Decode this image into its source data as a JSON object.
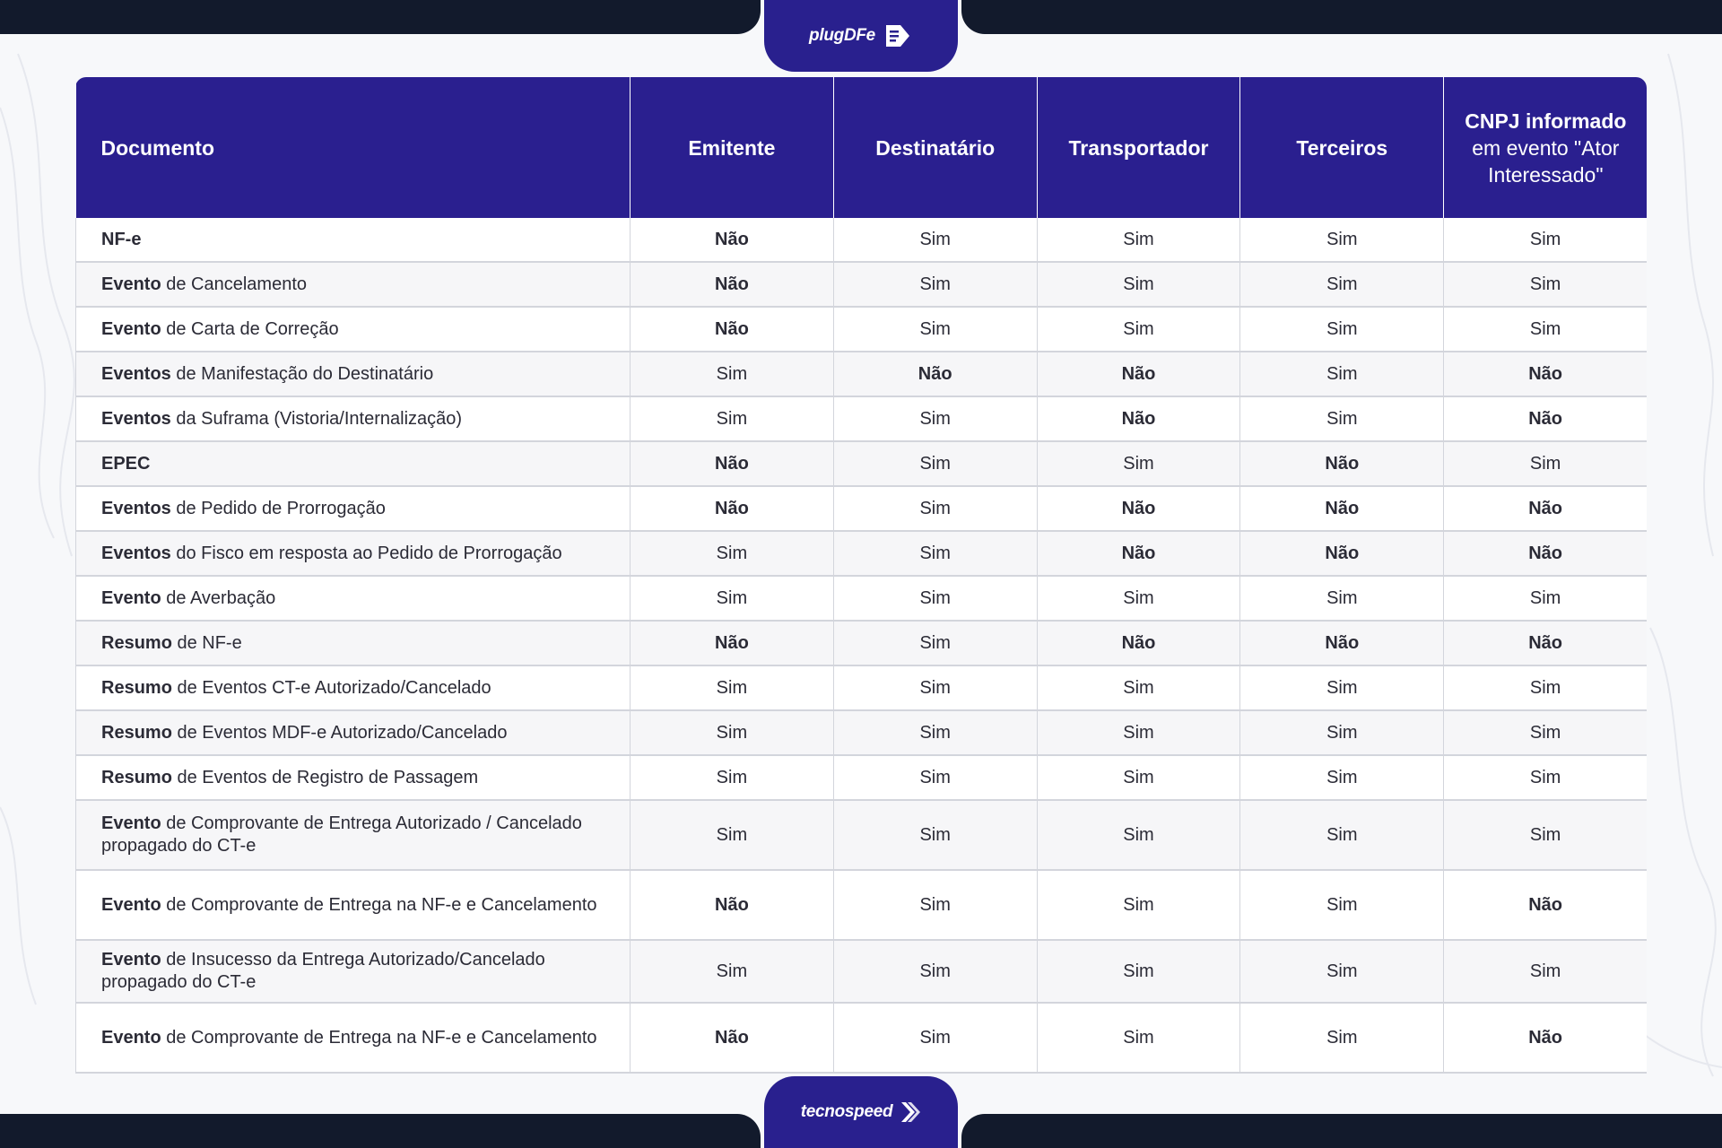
{
  "brand": {
    "top_logo": "plugDFe",
    "bottom_logo": "tecnospeed"
  },
  "table": {
    "headers": [
      {
        "bold": "Documento",
        "rest": ""
      },
      {
        "bold": "Emitente",
        "rest": ""
      },
      {
        "bold": "Destinatário",
        "rest": ""
      },
      {
        "bold": "Transportador",
        "rest": ""
      },
      {
        "bold": "Terceiros",
        "rest": ""
      },
      {
        "bold": "CNPJ informado",
        "rest": " em evento \"Ator Interessado\""
      }
    ],
    "rows": [
      {
        "doc_bold": "NF-e",
        "doc_rest": "",
        "values": [
          "Não",
          "Sim",
          "Sim",
          "Sim",
          "Sim"
        ]
      },
      {
        "doc_bold": "Evento",
        "doc_rest": " de Cancelamento",
        "values": [
          "Não",
          "Sim",
          "Sim",
          "Sim",
          "Sim"
        ]
      },
      {
        "doc_bold": "Evento",
        "doc_rest": " de Carta de Correção",
        "values": [
          "Não",
          "Sim",
          "Sim",
          "Sim",
          "Sim"
        ]
      },
      {
        "doc_bold": "Eventos",
        "doc_rest": " de Manifestação do Destinatário",
        "values": [
          "Sim",
          "Não",
          "Não",
          "Sim",
          "Não"
        ]
      },
      {
        "doc_bold": "Eventos",
        "doc_rest": " da Suframa (Vistoria/Internalização)",
        "values": [
          "Sim",
          "Sim",
          "Não",
          "Sim",
          "Não"
        ]
      },
      {
        "doc_bold": "EPEC",
        "doc_rest": "",
        "values": [
          "Não",
          "Sim",
          "Sim",
          "Não",
          "Sim"
        ]
      },
      {
        "doc_bold": "Eventos",
        "doc_rest": " de Pedido de Prorrogação",
        "values": [
          "Não",
          "Sim",
          "Não",
          "Não",
          "Não"
        ]
      },
      {
        "doc_bold": "Eventos",
        "doc_rest": " do Fisco em resposta ao Pedido de Prorrogação",
        "values": [
          "Sim",
          "Sim",
          "Não",
          "Não",
          "Não"
        ]
      },
      {
        "doc_bold": "Evento",
        "doc_rest": " de Averbação",
        "values": [
          "Sim",
          "Sim",
          "Sim",
          "Sim",
          "Sim"
        ]
      },
      {
        "doc_bold": "Resumo",
        "doc_rest": " de NF-e",
        "values": [
          "Não",
          "Sim",
          "Não",
          "Não",
          "Não"
        ]
      },
      {
        "doc_bold": "Resumo",
        "doc_rest": " de Eventos CT-e Autorizado/Cancelado",
        "values": [
          "Sim",
          "Sim",
          "Sim",
          "Sim",
          "Sim"
        ]
      },
      {
        "doc_bold": "Resumo",
        "doc_rest": " de Eventos MDF-e Autorizado/Cancelado",
        "values": [
          "Sim",
          "Sim",
          "Sim",
          "Sim",
          "Sim"
        ]
      },
      {
        "doc_bold": "Resumo",
        "doc_rest": " de Eventos de Registro de Passagem",
        "values": [
          "Sim",
          "Sim",
          "Sim",
          "Sim",
          "Sim"
        ]
      },
      {
        "doc_bold": "Evento",
        "doc_rest": " de Comprovante de Entrega Autorizado / Cancelado propagado do CT-e",
        "values": [
          "Sim",
          "Sim",
          "Sim",
          "Sim",
          "Sim"
        ]
      },
      {
        "doc_bold": "Evento",
        "doc_rest": " de Comprovante de Entrega na NF-e e Cancelamento",
        "values": [
          "Não",
          "Sim",
          "Sim",
          "Sim",
          "Não"
        ]
      },
      {
        "doc_bold": "Evento",
        "doc_rest": " de Insucesso da Entrega Autorizado/Cancelado propagado do CT-e",
        "values": [
          "Sim",
          "Sim",
          "Sim",
          "Sim",
          "Sim"
        ]
      },
      {
        "doc_bold": "Evento",
        "doc_rest": " de Comprovante de Entrega na NF-e e Cancelamento",
        "values": [
          "Não",
          "Sim",
          "Sim",
          "Sim",
          "Não"
        ]
      }
    ]
  }
}
